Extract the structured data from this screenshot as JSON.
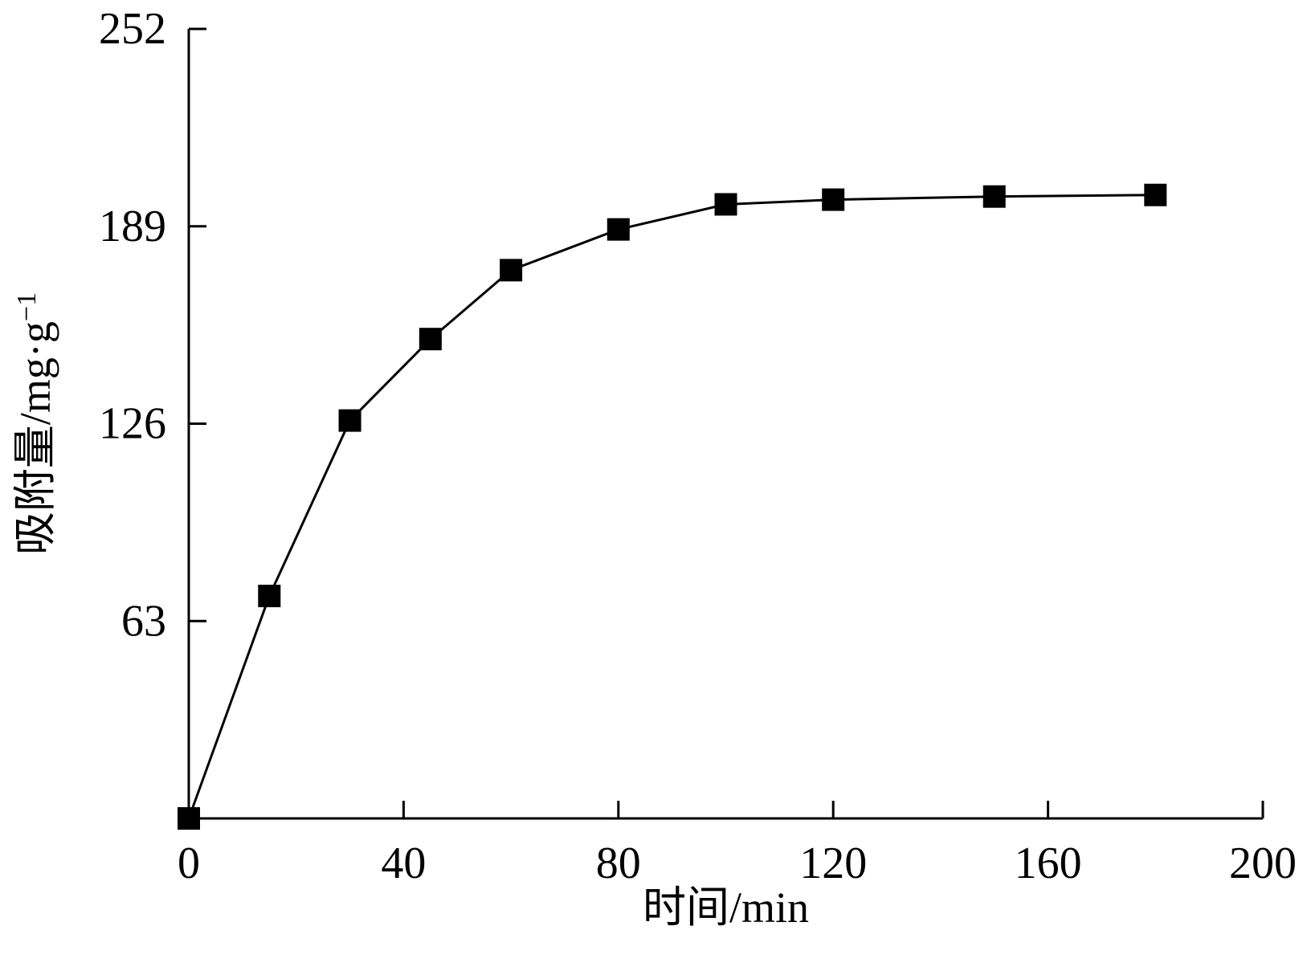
{
  "chart_data": {
    "type": "line",
    "title": "",
    "xlabel": "时间/min",
    "ylabel_main": "吸附量/mg·g",
    "ylabel_sup": "−1",
    "xlim": [
      0,
      200
    ],
    "ylim": [
      0,
      252
    ],
    "x_ticks": [
      0,
      40,
      80,
      120,
      160,
      200
    ],
    "y_ticks": [
      63,
      126,
      189,
      252
    ],
    "x_tick_labels": [
      "0",
      "40",
      "80",
      "120",
      "160",
      "200"
    ],
    "y_tick_labels": [
      "63",
      "126",
      "189",
      "252"
    ],
    "grid": false,
    "marker": "square",
    "color": "#000000",
    "series": [
      {
        "x": [
          0,
          15,
          30,
          45,
          60,
          80,
          100,
          120,
          150,
          180
        ],
        "y": [
          0,
          71,
          127,
          153,
          175,
          188,
          196,
          197.5,
          198.5,
          199
        ]
      }
    ]
  }
}
